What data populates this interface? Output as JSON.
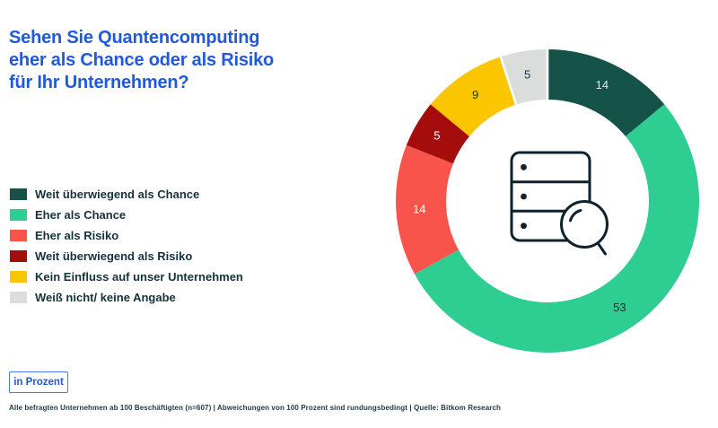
{
  "title": {
    "lines": [
      "Sehen Sie Quantencomputing",
      "eher als Chance oder als Risiko",
      "für Ihr Unternehmen?"
    ]
  },
  "chart_data": {
    "type": "pie",
    "subtype": "donut",
    "unit": "percent",
    "title": "Sehen Sie Quantencomputing eher als Chance oder als Risiko für Ihr Unternehmen?",
    "start_angle_deg": 0,
    "direction": "clockwise",
    "legend_position": "left",
    "separator_segment_index": 5,
    "center_icon": "database-search",
    "segments": [
      {
        "label": "Weit überwiegend als Chance",
        "value": 14,
        "color": "#155349",
        "label_color": "#dfe8e8"
      },
      {
        "label": "Eher als Chance",
        "value": 53,
        "color": "#2ecd91",
        "label_color": "#16323c"
      },
      {
        "label": "Eher als Risiko",
        "value": 14,
        "color": "#f9544b",
        "label_color": "#ffffff"
      },
      {
        "label": "Weit überwiegend als Risiko",
        "value": 5,
        "color": "#a50d0d",
        "label_color": "#ffffff"
      },
      {
        "label": "Kein Einfluss auf unser Unternehmen",
        "value": 9,
        "color": "#fbc500",
        "label_color": "#16323c"
      },
      {
        "label": "Weiß nicht/ keine Angabe",
        "value": 5,
        "color": "#dbdcdc",
        "label_color": "#16323c"
      }
    ]
  },
  "button": {
    "label": "in Prozent"
  },
  "footer": {
    "text": "Alle befragten Unternehmen ab 100 Beschäftigten (n=607) | Abweichungen von 100 Prozent sind rundungsbedingt | Quelle: Bitkom Research"
  },
  "colors": {
    "title": "#2059df",
    "text_dark": "#16323c",
    "footnote_text": "#1c3a46",
    "button_border": "#4a7ce8",
    "button_text": "#2059df",
    "icon": "#0e222b",
    "separator": "#ffffff",
    "background": "#ffffff"
  }
}
